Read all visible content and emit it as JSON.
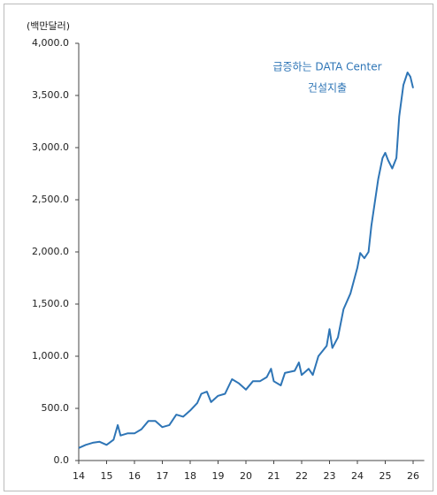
{
  "chart_data": {
    "type": "line",
    "y_unit": "(백만달러)",
    "annotation": [
      "급증하는 DATA Center",
      "건설지출"
    ],
    "x": [
      14.0,
      14.25,
      14.5,
      14.75,
      15.0,
      15.25,
      15.4,
      15.5,
      15.75,
      16.0,
      16.25,
      16.5,
      16.75,
      17.0,
      17.25,
      17.5,
      17.75,
      18.0,
      18.25,
      18.4,
      18.6,
      18.75,
      19.0,
      19.25,
      19.5,
      19.75,
      20.0,
      20.25,
      20.5,
      20.75,
      20.9,
      21.0,
      21.25,
      21.4,
      21.75,
      21.9,
      22.0,
      22.25,
      22.4,
      22.6,
      22.9,
      23.0,
      23.1,
      23.3,
      23.5,
      23.75,
      24.0,
      24.1,
      24.25,
      24.4,
      24.5,
      24.75,
      24.9,
      25.0,
      25.1,
      25.25,
      25.4,
      25.5,
      25.65,
      25.8,
      25.9,
      26.0
    ],
    "series": [
      {
        "color": "#2e75b6",
        "values": [
          120,
          150,
          170,
          180,
          150,
          200,
          340,
          240,
          260,
          260,
          300,
          380,
          380,
          320,
          340,
          440,
          420,
          480,
          550,
          640,
          660,
          560,
          620,
          640,
          780,
          740,
          680,
          760,
          760,
          800,
          880,
          760,
          720,
          840,
          860,
          940,
          820,
          880,
          820,
          1000,
          1100,
          1260,
          1080,
          1180,
          1450,
          1600,
          1850,
          1990,
          1940,
          2000,
          2250,
          2700,
          2900,
          2950,
          2880,
          2800,
          2900,
          3300,
          3600,
          3720,
          3680,
          3570
        ]
      }
    ],
    "xlim": [
      14,
      26.4
    ],
    "xticks": [
      14,
      15,
      16,
      17,
      18,
      19,
      20,
      21,
      22,
      23,
      24,
      25,
      26
    ],
    "ylim": [
      0,
      4000
    ],
    "yticks": [
      {
        "value": 0,
        "label": "0.0"
      },
      {
        "value": 500,
        "label": "500.0"
      },
      {
        "value": 1000,
        "label": "1,000.0"
      },
      {
        "value": 1500,
        "label": "1,500.0"
      },
      {
        "value": 2000,
        "label": "2,000.0"
      },
      {
        "value": 2500,
        "label": "2,500.0"
      },
      {
        "value": 3000,
        "label": "3,000.0"
      },
      {
        "value": 3500,
        "label": "3,500.0"
      },
      {
        "value": 4000,
        "label": "4,000.0"
      }
    ]
  }
}
